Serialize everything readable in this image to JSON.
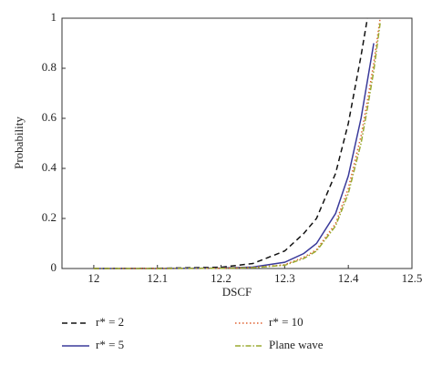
{
  "chart_data": {
    "type": "line",
    "x_label": "DSCF",
    "y_label": "Probability",
    "x": [
      12.0,
      12.1,
      12.2,
      12.25,
      12.3,
      12.33,
      12.35,
      12.38,
      12.4,
      12.42,
      12.43,
      12.44,
      12.45
    ],
    "series": [
      {
        "name": "r* = 2",
        "color": "#111111",
        "dash": "6,4",
        "values": [
          0,
          0.001,
          0.005,
          0.02,
          0.07,
          0.14,
          0.2,
          0.38,
          0.58,
          0.85,
          1.0,
          null,
          null
        ]
      },
      {
        "name": "r* = 5",
        "color": "#3a3a9a",
        "dash": "none",
        "values": [
          0,
          0,
          0.002,
          0.006,
          0.025,
          0.06,
          0.1,
          0.22,
          0.37,
          0.6,
          0.75,
          0.9,
          null
        ]
      },
      {
        "name": "r* = 10",
        "color": "#e06030",
        "dash": "1.5,2.5",
        "values": [
          0,
          0,
          0.001,
          0.004,
          0.015,
          0.045,
          0.075,
          0.18,
          0.32,
          0.53,
          0.67,
          0.82,
          1.0
        ]
      },
      {
        "name": "Plane wave",
        "color": "#9aaa30",
        "dash": "6,2,1.5,2",
        "values": [
          0,
          0,
          0.001,
          0.003,
          0.013,
          0.04,
          0.07,
          0.17,
          0.3,
          0.5,
          0.64,
          0.79,
          0.98
        ]
      }
    ],
    "xlim": [
      11.95,
      12.5
    ],
    "xticks": [
      12,
      12.1,
      12.2,
      12.3,
      12.4,
      12.5
    ],
    "ylim": [
      0,
      1
    ],
    "yticks": [
      0,
      0.2,
      0.4,
      0.6,
      0.8,
      1
    ]
  }
}
